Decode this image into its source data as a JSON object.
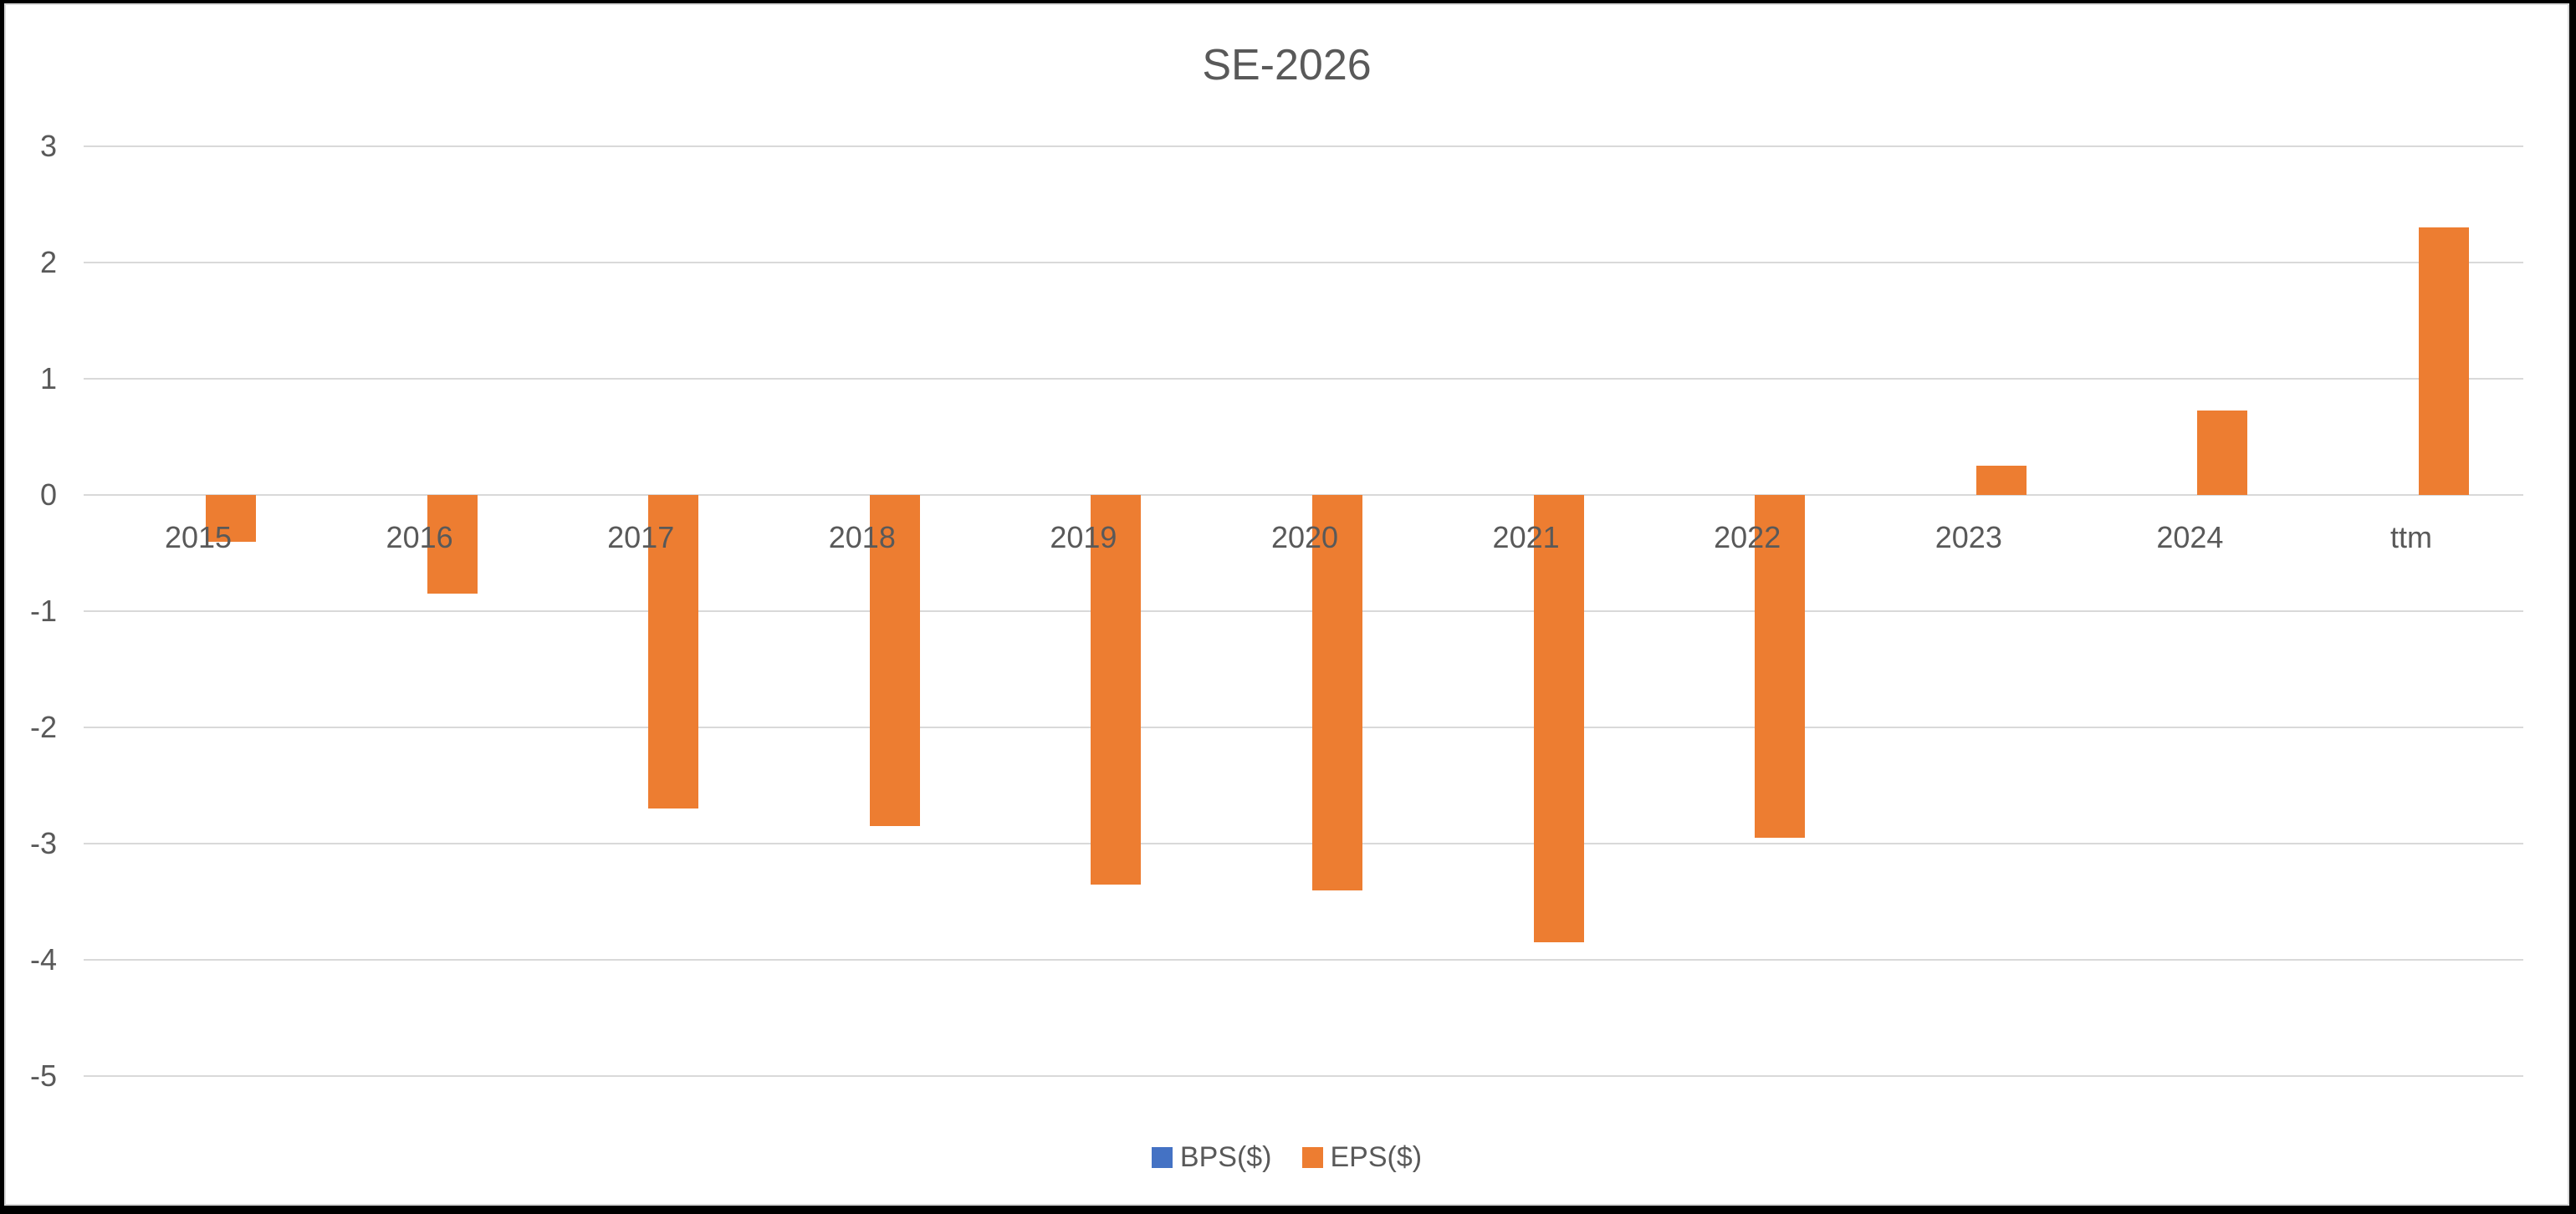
{
  "chart": {
    "title": "SE-2026"
  },
  "legend": {
    "position": "bottom",
    "items": [
      {
        "label": "BPS($)",
        "color": "#4472C4"
      },
      {
        "label": "EPS($)",
        "color": "#ED7D31"
      }
    ]
  },
  "chart_data": {
    "type": "bar",
    "title": "SE-2026",
    "xlabel": "",
    "ylabel": "",
    "categories": [
      "2015",
      "2016",
      "2017",
      "2018",
      "2019",
      "2020",
      "2021",
      "2022",
      "2023",
      "2024",
      "ttm"
    ],
    "series": [
      {
        "name": "BPS($)",
        "color": "#4472C4",
        "values": [
          0,
          0,
          0,
          0,
          0,
          0,
          0,
          0,
          0,
          0,
          0
        ]
      },
      {
        "name": "EPS($)",
        "color": "#ED7D31",
        "values": [
          -0.4,
          -0.85,
          -2.7,
          -2.85,
          -3.35,
          -3.4,
          -3.85,
          -2.95,
          0.25,
          0.73,
          2.3
        ]
      }
    ],
    "ylim": [
      -5,
      3
    ],
    "ytick_step": 1,
    "ytick_labels": [
      "3",
      "2",
      "1",
      "0",
      "-1",
      "-2",
      "-3",
      "-4",
      "-5"
    ],
    "grid": true,
    "gridline_color": "#D9D9D9",
    "text_color": "#595959",
    "legend_position": "bottom"
  }
}
